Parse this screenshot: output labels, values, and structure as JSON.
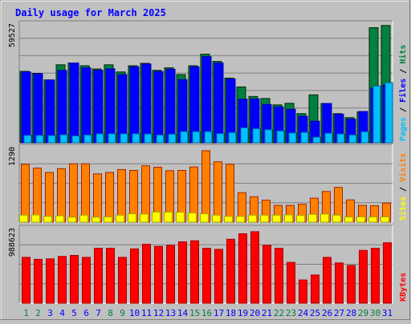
{
  "chart_data": [
    {
      "type": "bar",
      "title": "Daily usage for March 2025",
      "ylabel": "Pages / Files / Hits",
      "ymax_label": "59527",
      "ylim": [
        0,
        59527
      ],
      "categories": [
        "1",
        "2",
        "3",
        "4",
        "5",
        "6",
        "7",
        "8",
        "9",
        "10",
        "11",
        "12",
        "13",
        "14",
        "15",
        "16",
        "17",
        "18",
        "19",
        "20",
        "21",
        "22",
        "23",
        "24",
        "25",
        "26",
        "27",
        "28",
        "29",
        "30",
        "31"
      ],
      "weekend_days": [
        "1",
        "2",
        "8",
        "9",
        "15",
        "16",
        "22",
        "23",
        "29",
        "30"
      ],
      "series": [
        {
          "name": "Hits",
          "color": "#008040",
          "values": [
            35800,
            34800,
            31500,
            39100,
            40000,
            38600,
            37000,
            39100,
            35500,
            38600,
            39800,
            36300,
            37600,
            34200,
            38600,
            44400,
            40800,
            32400,
            28000,
            23200,
            22200,
            19000,
            19800,
            14600,
            24000,
            19700,
            14600,
            12600,
            15500,
            57700,
            58800
          ]
        },
        {
          "name": "Files",
          "color": "#0000ff",
          "values": [
            35500,
            34600,
            31500,
            36300,
            40000,
            37600,
            36400,
            37100,
            34200,
            38100,
            39500,
            35700,
            36900,
            31700,
            38100,
            43200,
            40000,
            32000,
            21900,
            22000,
            19200,
            18000,
            16800,
            13300,
            10800,
            19700,
            14300,
            11900,
            15700,
            27400,
            29000
          ]
        },
        {
          "name": "Pages",
          "color": "#00c0ff",
          "values": [
            3700,
            3700,
            3600,
            4000,
            3400,
            3900,
            4500,
            4500,
            4500,
            4500,
            4400,
            3900,
            4300,
            5600,
            5600,
            5600,
            4600,
            5100,
            7500,
            7000,
            6500,
            5900,
            4900,
            5200,
            2800,
            4800,
            4400,
            3900,
            5500,
            28400,
            30100
          ]
        }
      ]
    },
    {
      "type": "bar",
      "ylabel": "Sites / Visits",
      "ymax_label": "1290",
      "ylim": [
        0,
        1290
      ],
      "categories": [
        "1",
        "2",
        "3",
        "4",
        "5",
        "6",
        "7",
        "8",
        "9",
        "10",
        "11",
        "12",
        "13",
        "14",
        "15",
        "16",
        "17",
        "18",
        "19",
        "20",
        "21",
        "22",
        "23",
        "24",
        "25",
        "26",
        "27",
        "28",
        "29",
        "30",
        "31"
      ],
      "series": [
        {
          "name": "Visits",
          "color": "#ff8000",
          "values": [
            1000,
            935,
            860,
            925,
            1010,
            1010,
            835,
            860,
            910,
            895,
            975,
            950,
            890,
            895,
            955,
            1235,
            1045,
            1000,
            510,
            440,
            380,
            290,
            290,
            310,
            415,
            530,
            600,
            385,
            290,
            285,
            330
          ]
        },
        {
          "name": "Sites",
          "color": "#ffff00",
          "values": [
            120,
            125,
            100,
            110,
            85,
            120,
            85,
            90,
            120,
            145,
            140,
            175,
            175,
            170,
            160,
            145,
            120,
            100,
            100,
            120,
            120,
            120,
            125,
            115,
            135,
            140,
            120,
            90,
            90,
            90,
            90
          ]
        }
      ]
    },
    {
      "type": "bar",
      "ylabel": "KBytes",
      "ymax_label": "988623",
      "ylim": [
        0,
        988623
      ],
      "categories": [
        "1",
        "2",
        "3",
        "4",
        "5",
        "6",
        "7",
        "8",
        "9",
        "10",
        "11",
        "12",
        "13",
        "14",
        "15",
        "16",
        "17",
        "18",
        "19",
        "20",
        "21",
        "22",
        "23",
        "24",
        "25",
        "26",
        "27",
        "28",
        "29",
        "30",
        "31"
      ],
      "series": [
        {
          "name": "KBytes",
          "color": "#ff0000",
          "values": [
            607000,
            580000,
            587000,
            620000,
            633000,
            607000,
            727000,
            727000,
            607000,
            720000,
            780000,
            753000,
            767000,
            813000,
            827000,
            727000,
            713000,
            847000,
            920000,
            947000,
            767000,
            727000,
            540000,
            307000,
            373000,
            607000,
            533000,
            500000,
            700000,
            727000,
            800000
          ]
        }
      ]
    }
  ],
  "colors": {
    "background": "#c0c0c0",
    "plot_background": "#c0c0c0",
    "title": "#0000ff",
    "weekday_label": "#0000ff",
    "weekend_label": "#008040",
    "gridline": "#808080"
  }
}
